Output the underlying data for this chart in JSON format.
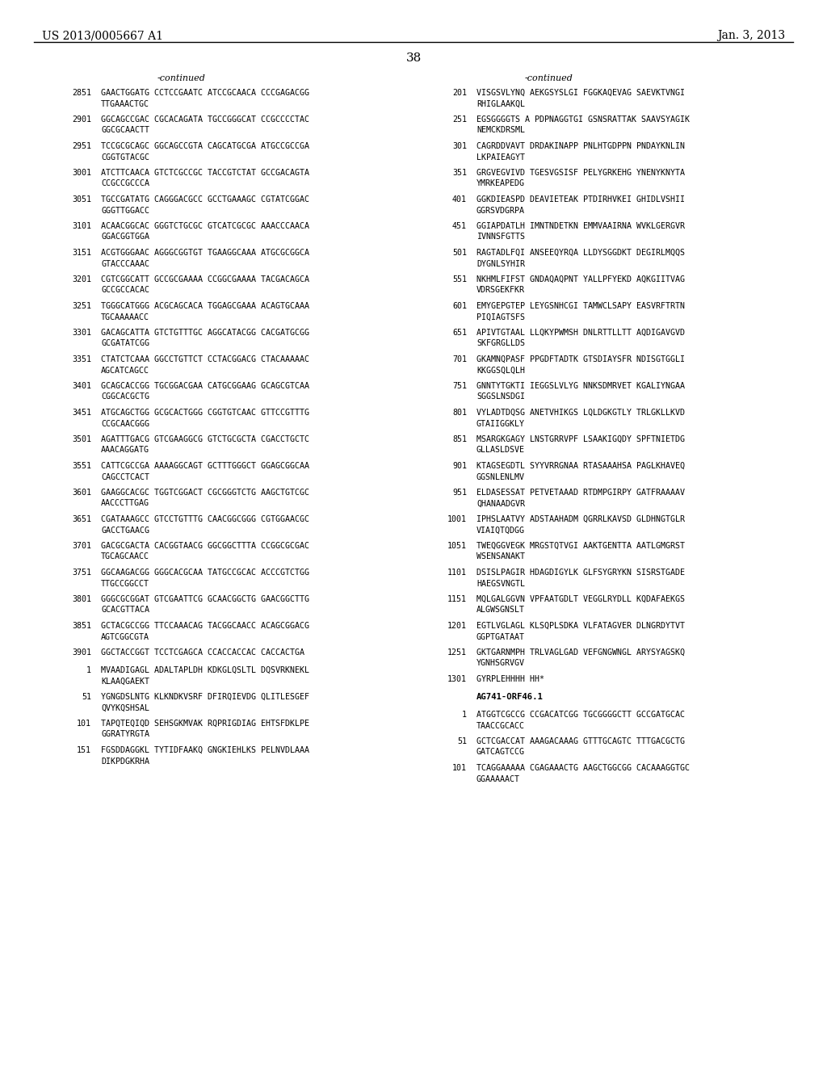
{
  "header_left": "US 2013/0005667 A1",
  "header_right": "Jan. 3, 2013",
  "page_number": "38",
  "continued_left": "-continued",
  "continued_right": "-continued",
  "bg_color": "#ffffff",
  "left_column": [
    [
      "2851",
      "GAACTGGATG CCTCCGAATC ATCCGCAACA CCCGAGACGG",
      "TTGAAACTGC"
    ],
    [
      "2901",
      "GGCAGCCGAC CGCACAGATA TGCCGGGCAT CCGCCCCTAC",
      "GGCGCAACTT"
    ],
    [
      "2951",
      "TCCGCGCAGC GGCAGCCGTA CAGCATGCGA ATGCCGCCGA",
      "CGGTGTACGC"
    ],
    [
      "3001",
      "ATCTTCAACA GTCTCGCCGC TACCGTCTAT GCCGACAGTA",
      "CCGCCGCCCA"
    ],
    [
      "3051",
      "TGCCGATATG CAGGGACGCC GCCTGAAAGC CGTATCGGAC",
      "GGGTTGGACC"
    ],
    [
      "3101",
      "ACAACGGCAC GGGTCTGCGC GTCATCGCGC AAACCCAACA",
      "GGACGGTGGA"
    ],
    [
      "3151",
      "ACGTGGGAAC AGGGCGGTGT TGAAGGCAAA ATGCGCGGCA",
      "GTACCCAAAC"
    ],
    [
      "3201",
      "CGTCGGCATT GCCGCGAAAA CCGGCGAAAA TACGACAGCA",
      "GCCGCCACAC"
    ],
    [
      "3251",
      "TGGGCATGGG ACGCAGCACA TGGAGCGAAA ACAGTGCAAA",
      "TGCAAAAACC"
    ],
    [
      "3301",
      "GACAGCATTA GTCTGTTTGC AGGCATACGG CACGATGCGG",
      "GCGATATCGG"
    ],
    [
      "3351",
      "CTATCTCAAA GGCCTGTTCT CCTACGGACG CTACAAAAAC",
      "AGCATCAGCC"
    ],
    [
      "3401",
      "GCAGCACCGG TGCGGACGAA CATGCGGAAG GCAGCGTCAA",
      "CGGCACGCTG"
    ],
    [
      "3451",
      "ATGCAGCTGG GCGCACTGGG CGGTGTCAAC GTTCCGTTTG",
      "CCGCAACGGG"
    ],
    [
      "3501",
      "AGATTTGACG GTCGAAGGCG GTCTGCGCTA CGACCTGCTC",
      "AAACAGGATG"
    ],
    [
      "3551",
      "CATTCGCCGA AAAAGGCAGT GCTTTGGGCT GGAGCGGCAA",
      "CAGCCTCACT"
    ],
    [
      "3601",
      "GAAGGCACGC TGGTCGGACT CGCGGGTCTG AAGCTGTCGC",
      "AACCCTTGAG"
    ],
    [
      "3651",
      "CGATAAAGCC GTCCTGTTTG CAACGGCGGG CGTGGAACGC",
      "GACCTGAACG"
    ],
    [
      "3701",
      "GACGCGACTA CACGGTAACG GGCGGCTTTA CCGGCGCGAC",
      "TGCAGCAACC"
    ],
    [
      "3751",
      "GGCAAGACGG GGGCACGCAA TATGCCGCAC ACCCGTCTGG",
      "TTGCCGGCCT"
    ],
    [
      "3801",
      "GGGCGCGGAT GTCGAATTCG GCAACGGCTG GAACGGCTTG",
      "GCACGTTACA"
    ],
    [
      "3851",
      "GCTACGCCGG TTCCAAACAG TACGGCAACC ACAGCGGACG",
      "AGTCGGCGTA"
    ],
    [
      "3901",
      "GGCTACCGGT TCCTCGAGCA CCACCACCAC CACCACTGA",
      ""
    ],
    [
      "1",
      "MVAADIGAGL ADALTAPLDH KDKGLQSLTL DQSVRKNEKL",
      "KLAAQGAEKT"
    ],
    [
      "51",
      "YGNGDSLNTG KLKNDKVSRF DFIRQIEVDG QLITLESGEF",
      "QVYKQSHSAL"
    ],
    [
      "101",
      "TAPQTEQIQD SEHSGKMVAK RQPRIGDIAG EHTSFDKLPE",
      "GGRATYRGTA"
    ],
    [
      "151",
      "FGSDDAGGKL TYTIDFAAKQ GNGKIEHLKS PELNVDLAAA",
      "DIKPDGKRHA"
    ]
  ],
  "right_column": [
    [
      "201",
      "VISGSVLYNQ AEKGSYSLGI FGGKAQEVAG SAEVKTVNGI",
      "RHIGLAAKQL"
    ],
    [
      "251",
      "EGSGGGGTS A PDPNAGGTGI GSNSRATTAK SAAVSYAGIK",
      "NEMCKDRSML"
    ],
    [
      "301",
      "CAGRDDVAVT DRDAKINAPP PNLHTGDPPN PNDAYKNLIN",
      "LKPAIEAGYT"
    ],
    [
      "351",
      "GRGVEGVIVD TGESVGSISF PELYGRKEHG YNENYKNYTA",
      "YMRKEAPEDG"
    ],
    [
      "401",
      "GGKDIEASPD DEAVIETEAK PTDIRHVKEI GHIDLVSHII",
      "GGRSVDGRPA"
    ],
    [
      "451",
      "GGIAPDATLH IMNTNDETKN EMMVAAIRNA WVKLGERGVR",
      "IVNNSFGTTS"
    ],
    [
      "501",
      "RAGTADLFQI ANSEEQYRQA LLDYSGGDKT DEGIRLMQQS",
      "DYGNLSYHIR"
    ],
    [
      "551",
      "NKHMLFIFST GNDAQAQPNT YALLPFYEKD AQKGIITVAG",
      "VDRSGEKFKR"
    ],
    [
      "601",
      "EMYGEPGTEP LEYGSNHCGI TAMWCLSAPY EASVRFTRTN",
      "PIQIAGTSFS"
    ],
    [
      "651",
      "APIVTGTAAL LLQKYPWMSH DNLRTTLLTT AQDIGAVGVD",
      "SKFGRGLLDS"
    ],
    [
      "701",
      "GKAMNQPASF PPGDFTADTK GTSDIAYSFR NDISGTGGLI",
      "KKGGSQLQLH"
    ],
    [
      "751",
      "GNNTYTGKTI IEGGSLVLYG NNKSDMRVET KGALIYNGAA",
      "SGGSLNSDGI"
    ],
    [
      "801",
      "VYLADTDQSG ANETVHIKGS LQLDGKGTLY TRLGKLLKVD",
      "GTAIIGGKLY"
    ],
    [
      "851",
      "MSARGKGAGY LNSTGRRVPF LSAAKIGQDY SPFTNIETDG",
      "GLLASLDSVE"
    ],
    [
      "901",
      "KTAGSEGDTL SYYVRRGNAA RTASAAAHSA PAGLKHAVEQ",
      "GGSNLENLMV"
    ],
    [
      "951",
      "ELDASESSAT PETVETAAAD RTDMPGIRPY GATFRAAAAV",
      "QHANAADGVR"
    ],
    [
      "1001",
      "IPHSLAATVY ADSTAAHADM QGRRLKAVSD GLDHNGTGLR",
      "VIAIQTQDGG"
    ],
    [
      "1051",
      "TWEQGGVEGK MRGSTQTVGI AAKTGENTTA AATLGMGRST",
      "WSENSANAKT"
    ],
    [
      "1101",
      "DSISLPAGIR HDAGDIGYLK GLFSYGRYKN SISRSTGADE",
      "HAEGSVNGTL"
    ],
    [
      "1151",
      "MQLGALGGVN VPFAATGDLT VEGGLRYDLL KQDAFAEKGS",
      "ALGWSGNSLT"
    ],
    [
      "1201",
      "EGTLVGLAGL KLSQPLSDKA VLFATAGVER DLNGRDYTVT",
      "GGPTGATAAT"
    ],
    [
      "1251",
      "GKTGARNMPH TRLVAGLGAD VEFGNGWNGL ARYSYAGSKQ",
      "YGNHSGRVGV"
    ],
    [
      "1301",
      "GYRPLEHHHH HH*",
      ""
    ],
    [
      "LABEL",
      "AG741-ORF46.1",
      ""
    ],
    [
      "1",
      "ATGGTCGCCG CCGACATCGG TGCGGGGCTT GCCGATGCAC",
      "TAACCGCACC"
    ],
    [
      "51",
      "GCTCGACCAT AAAGACAAAG GTTTGCAGTC TTTGACGCTG",
      "GATCAGTCCG"
    ],
    [
      "101",
      "TCAGGAAAAA CGAGAAACTG AAGCTGGCGG CACAAAGGTGC",
      "GGAAAAACT"
    ]
  ]
}
